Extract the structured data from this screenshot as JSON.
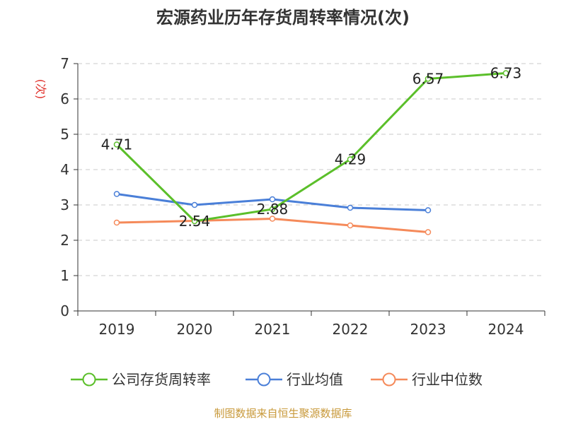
{
  "chart_data": {
    "type": "line",
    "title": "宏源药业历年存货周转率情况(次)",
    "ylabel": "(次)",
    "xlabel": "",
    "categories": [
      "2019",
      "2020",
      "2021",
      "2022",
      "2023",
      "2024"
    ],
    "ylim": [
      0,
      7
    ],
    "yticks": [
      0,
      1,
      2,
      3,
      4,
      5,
      6,
      7
    ],
    "grid": true,
    "legend_position": "bottom",
    "series": [
      {
        "name": "公司存货周转率",
        "color": "#5bbf2a",
        "values": [
          4.71,
          2.54,
          2.88,
          4.29,
          6.57,
          6.73
        ],
        "labels": [
          "4.71",
          "2.54",
          "2.88",
          "4.29",
          "6.57",
          "6.73"
        ]
      },
      {
        "name": "行业均值",
        "color": "#4a7fd8",
        "values": [
          3.31,
          3.0,
          3.16,
          2.92,
          2.85,
          null
        ]
      },
      {
        "name": "行业中位数",
        "color": "#f58a5a",
        "values": [
          2.5,
          2.55,
          2.61,
          2.42,
          2.23,
          null
        ]
      }
    ]
  },
  "footer": {
    "source": "制图数据来自恒生聚源数据库"
  }
}
